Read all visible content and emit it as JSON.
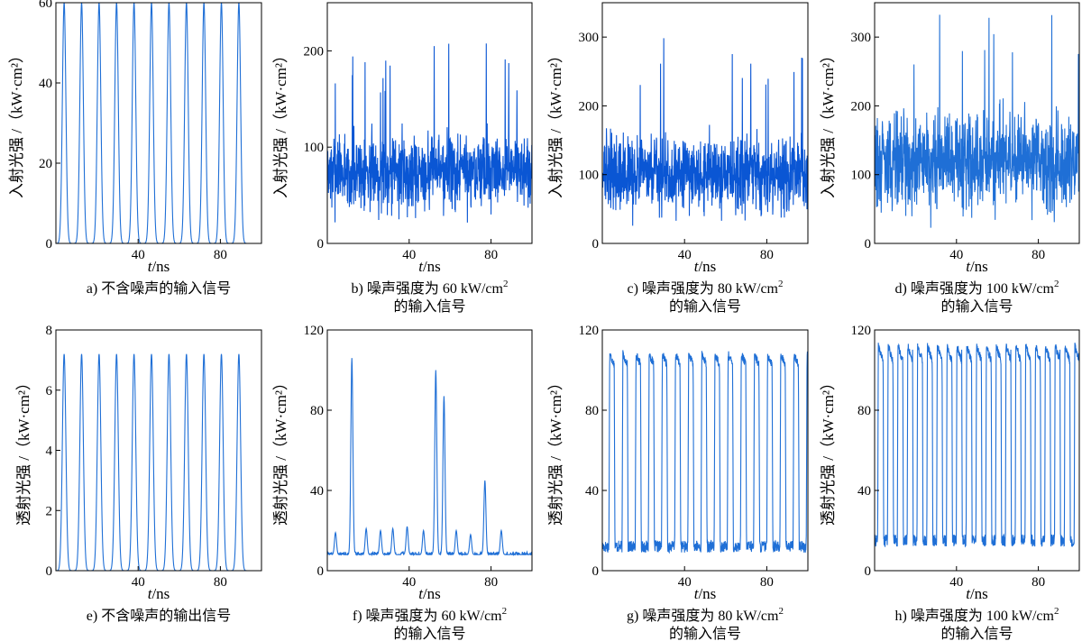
{
  "chart_data": [
    {
      "id": "a",
      "type": "line",
      "panel": "a)",
      "title": "不含噪声的输入信号",
      "title_line2": "",
      "ylabel": "入射光强 /（kW·cm²）",
      "xlabel_var": "t",
      "xlabel_unit": "/ns",
      "xlim": [
        0,
        100
      ],
      "ylim": [
        0,
        60
      ],
      "xticks": [
        {
          "v": 40,
          "label": "40"
        },
        {
          "v": 80,
          "label": "80"
        }
      ],
      "yticks": [
        {
          "v": 0,
          "label": "0"
        },
        {
          "v": 20,
          "label": "20"
        },
        {
          "v": 40,
          "label": "40"
        },
        {
          "v": 60,
          "label": "60"
        }
      ],
      "color": "#1f6fd6",
      "signal": {
        "kind": "pulse",
        "period": 8.5,
        "start": 4,
        "base": 0,
        "peak": 60,
        "width": 1.2,
        "count": 11
      }
    },
    {
      "id": "b",
      "type": "line",
      "panel": "b)",
      "title": "噪声强度为 60 kW/cm",
      "title_sup": "2",
      "title_line2": "的输入信号",
      "ylabel": "入射光强 /（kW·cm²）",
      "xlabel_var": "t",
      "xlabel_unit": "/ns",
      "xlim": [
        0,
        100
      ],
      "ylim": [
        0,
        250
      ],
      "xticks": [
        {
          "v": 40,
          "label": "40"
        },
        {
          "v": 80,
          "label": "80"
        }
      ],
      "yticks": [
        {
          "v": 0,
          "label": "0"
        },
        {
          "v": 100,
          "label": "100"
        },
        {
          "v": 200,
          "label": "200"
        }
      ],
      "color": "#0a56d4",
      "signal": {
        "kind": "noise",
        "mean": 75,
        "amplitude": 60,
        "spike": 210,
        "seed": 7,
        "samples": 900
      }
    },
    {
      "id": "c",
      "type": "line",
      "panel": "c)",
      "title": "噪声强度为 80 kW/cm",
      "title_sup": "2",
      "title_line2": "的输入信号",
      "ylabel": "入射光强 /（kW·cm²）",
      "xlabel_var": "t",
      "xlabel_unit": "/ns",
      "xlim": [
        0,
        100
      ],
      "ylim": [
        0,
        350
      ],
      "xticks": [
        {
          "v": 40,
          "label": "40"
        },
        {
          "v": 80,
          "label": "80"
        }
      ],
      "yticks": [
        {
          "v": 0,
          "label": "0"
        },
        {
          "v": 100,
          "label": "100"
        },
        {
          "v": 200,
          "label": "200"
        },
        {
          "v": 300,
          "label": "300"
        }
      ],
      "color": "#0a56d4",
      "signal": {
        "kind": "noise",
        "mean": 100,
        "amplitude": 80,
        "spike": 305,
        "seed": 13,
        "samples": 900
      }
    },
    {
      "id": "d",
      "type": "line",
      "panel": "d)",
      "title": "噪声强度为 100 kW/cm",
      "title_sup": "2",
      "title_line2": "的输入信号",
      "ylabel": "入射光强 /（kW·cm²）",
      "xlabel_var": "t",
      "xlabel_unit": "/ns",
      "xlim": [
        0,
        100
      ],
      "ylim": [
        0,
        350
      ],
      "xticks": [
        {
          "v": 40,
          "label": "40"
        },
        {
          "v": 80,
          "label": "80"
        }
      ],
      "yticks": [
        {
          "v": 0,
          "label": "0"
        },
        {
          "v": 100,
          "label": "100"
        },
        {
          "v": 200,
          "label": "200"
        },
        {
          "v": 300,
          "label": "300"
        }
      ],
      "color": "#1f6fd6",
      "signal": {
        "kind": "noise",
        "mean": 120,
        "amplitude": 100,
        "spike": 335,
        "seed": 29,
        "samples": 900
      }
    },
    {
      "id": "e",
      "type": "line",
      "panel": "e)",
      "title": "不含噪声的输出信号",
      "title_line2": "",
      "ylabel": "透射光强 /（kW·cm²）",
      "xlabel_var": "t",
      "xlabel_unit": "/ns",
      "xlim": [
        0,
        100
      ],
      "ylim": [
        0,
        8
      ],
      "xticks": [
        {
          "v": 40,
          "label": "40"
        },
        {
          "v": 80,
          "label": "80"
        }
      ],
      "yticks": [
        {
          "v": 0,
          "label": "0"
        },
        {
          "v": 2,
          "label": "2"
        },
        {
          "v": 4,
          "label": "4"
        },
        {
          "v": 6,
          "label": "6"
        },
        {
          "v": 8,
          "label": "8"
        }
      ],
      "color": "#1f6fd6",
      "signal": {
        "kind": "pulse",
        "period": 8.5,
        "start": 4,
        "base": 0,
        "peak": 7.2,
        "width": 1.2,
        "count": 11
      }
    },
    {
      "id": "f",
      "type": "line",
      "panel": "f)",
      "title": "噪声强度为 60 kW/cm",
      "title_sup": "2",
      "title_line2": "的输入信号",
      "ylabel": "透射光强 /（kW·cm²）",
      "xlabel_var": "t",
      "xlabel_unit": "/ns",
      "xlim": [
        0,
        100
      ],
      "ylim": [
        0,
        120
      ],
      "xticks": [
        {
          "v": 40,
          "label": "40"
        },
        {
          "v": 80,
          "label": "80"
        }
      ],
      "yticks": [
        {
          "v": 0,
          "label": "0"
        },
        {
          "v": 40,
          "label": "40"
        },
        {
          "v": 80,
          "label": "80"
        },
        {
          "v": 120,
          "label": "120"
        }
      ],
      "color": "#1f6fd6",
      "signal": {
        "kind": "bumps",
        "base": 8,
        "seed": 3,
        "samples": 700,
        "peaks": [
          [
            4,
            19
          ],
          [
            12,
            106
          ],
          [
            19,
            21
          ],
          [
            26,
            20
          ],
          [
            32,
            21
          ],
          [
            39,
            22
          ],
          [
            47,
            20
          ],
          [
            53,
            100
          ],
          [
            57,
            87
          ],
          [
            63,
            20
          ],
          [
            70,
            18
          ],
          [
            77,
            45
          ],
          [
            85,
            20
          ],
          [
            92,
            8
          ]
        ]
      }
    },
    {
      "id": "g",
      "type": "line",
      "panel": "g)",
      "title": "噪声强度为 80 kW/cm",
      "title_sup": "2",
      "title_line2": "的输入信号",
      "ylabel": "透射光强 /（kW·cm²）",
      "xlabel_var": "t",
      "xlabel_unit": "/ns",
      "xlim": [
        0,
        100
      ],
      "ylim": [
        0,
        120
      ],
      "xticks": [
        {
          "v": 40,
          "label": "40"
        },
        {
          "v": 80,
          "label": "80"
        }
      ],
      "yticks": [
        {
          "v": 0,
          "label": "0"
        },
        {
          "v": 40,
          "label": "40"
        },
        {
          "v": 80,
          "label": "80"
        },
        {
          "v": 120,
          "label": "120"
        }
      ],
      "color": "#1f6fd6",
      "signal": {
        "kind": "plateau",
        "period": 6.4,
        "start": 3.2,
        "base": 12,
        "peak": 108,
        "duty": 0.4,
        "seed": 17,
        "samples": 900
      }
    },
    {
      "id": "h",
      "type": "line",
      "panel": "h)",
      "title": "噪声强度为 100 kW/cm",
      "title_sup": "2",
      "title_line2": "的输入信号",
      "ylabel": "透射光强 /（kW·cm²）",
      "xlabel_var": "t",
      "xlabel_unit": "/ns",
      "xlim": [
        0,
        100
      ],
      "ylim": [
        0,
        120
      ],
      "xticks": [
        {
          "v": 40,
          "label": "40"
        },
        {
          "v": 80,
          "label": "80"
        }
      ],
      "yticks": [
        {
          "v": 0,
          "label": "0"
        },
        {
          "v": 40,
          "label": "40"
        },
        {
          "v": 80,
          "label": "80"
        },
        {
          "v": 120,
          "label": "120"
        }
      ],
      "color": "#1f6fd6",
      "signal": {
        "kind": "plateau",
        "period": 4.8,
        "start": 1.5,
        "base": 15,
        "peak": 112,
        "duty": 0.55,
        "seed": 41,
        "samples": 1100
      }
    }
  ]
}
